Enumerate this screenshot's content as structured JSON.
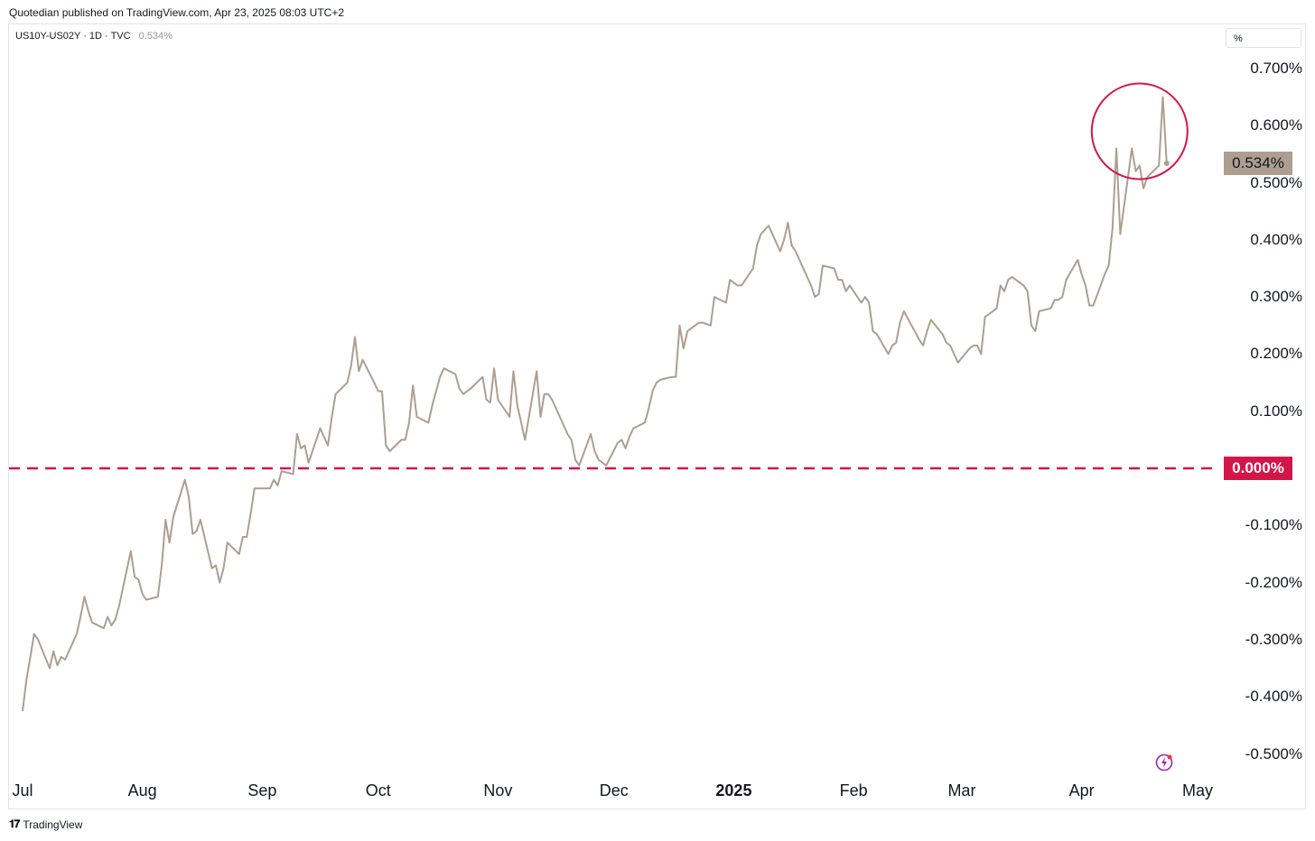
{
  "publisher_line": "Quotedian published on TradingView.com, Apr 23, 2025 08:03 UTC+2",
  "symbol": {
    "name": "US10Y-US02Y · 1D · TVC",
    "last": "0.534%"
  },
  "unit_button": "%",
  "price_badge": "0.534%",
  "zero_badge": "0.000%",
  "footer": {
    "logo": "𝟏𝟕",
    "brand": "TradingView"
  },
  "icons": {
    "flash": "lightning-icon",
    "logo": "tradingview-logo-icon"
  },
  "colors": {
    "line": "#ad9e8f",
    "zero_line": "#d2164a",
    "annotation_circle": "#d2164a",
    "price_badge": "#ad9e8f"
  },
  "chart_data": {
    "type": "line",
    "title": "",
    "ylabel": "%",
    "ylim": [
      -0.55,
      0.75
    ],
    "yticks": [
      "0.700%",
      "0.600%",
      "0.500%",
      "0.400%",
      "0.300%",
      "0.200%",
      "0.100%",
      "-0.100%",
      "-0.200%",
      "-0.300%",
      "-0.400%",
      "-0.500%"
    ],
    "ytick_values": [
      0.7,
      0.6,
      0.5,
      0.4,
      0.3,
      0.2,
      0.1,
      -0.1,
      -0.2,
      -0.3,
      -0.4,
      -0.5
    ],
    "xticks": [
      {
        "label": "Jul",
        "date": "2024-07-01"
      },
      {
        "label": "Aug",
        "date": "2024-08-01"
      },
      {
        "label": "Sep",
        "date": "2024-09-01"
      },
      {
        "label": "Oct",
        "date": "2024-10-01"
      },
      {
        "label": "Nov",
        "date": "2024-11-01"
      },
      {
        "label": "Dec",
        "date": "2024-12-01"
      },
      {
        "label": "2025",
        "date": "2025-01-01",
        "bold": true
      },
      {
        "label": "Feb",
        "date": "2025-02-01"
      },
      {
        "label": "Mar",
        "date": "2025-03-01"
      },
      {
        "label": "Apr",
        "date": "2025-04-01"
      },
      {
        "label": "May",
        "date": "2025-05-01"
      }
    ],
    "horizontal_line": {
      "value": 0.0,
      "style": "dashed"
    },
    "annotation": {
      "type": "circle",
      "center_date": "2025-04-16",
      "center_value": 0.59
    },
    "series": [
      {
        "points": [
          [
            "2024-07-01",
            -0.425
          ],
          [
            "2024-07-02",
            -0.37
          ],
          [
            "2024-07-03",
            -0.33
          ],
          [
            "2024-07-04",
            -0.29
          ],
          [
            "2024-07-05",
            -0.3
          ],
          [
            "2024-07-08",
            -0.35
          ],
          [
            "2024-07-09",
            -0.32
          ],
          [
            "2024-07-10",
            -0.345
          ],
          [
            "2024-07-11",
            -0.33
          ],
          [
            "2024-07-12",
            -0.335
          ],
          [
            "2024-07-15",
            -0.29
          ],
          [
            "2024-07-16",
            -0.26
          ],
          [
            "2024-07-17",
            -0.225
          ],
          [
            "2024-07-18",
            -0.25
          ],
          [
            "2024-07-19",
            -0.27
          ],
          [
            "2024-07-22",
            -0.28
          ],
          [
            "2024-07-23",
            -0.26
          ],
          [
            "2024-07-24",
            -0.275
          ],
          [
            "2024-07-25",
            -0.265
          ],
          [
            "2024-07-26",
            -0.24
          ],
          [
            "2024-07-29",
            -0.145
          ],
          [
            "2024-07-30",
            -0.19
          ],
          [
            "2024-07-31",
            -0.195
          ],
          [
            "2024-08-01",
            -0.22
          ],
          [
            "2024-08-02",
            -0.23
          ],
          [
            "2024-08-05",
            -0.225
          ],
          [
            "2024-08-06",
            -0.17
          ],
          [
            "2024-08-07",
            -0.09
          ],
          [
            "2024-08-08",
            -0.13
          ],
          [
            "2024-08-09",
            -0.085
          ],
          [
            "2024-08-12",
            -0.02
          ],
          [
            "2024-08-13",
            -0.05
          ],
          [
            "2024-08-14",
            -0.115
          ],
          [
            "2024-08-15",
            -0.11
          ],
          [
            "2024-08-16",
            -0.09
          ],
          [
            "2024-08-19",
            -0.175
          ],
          [
            "2024-08-20",
            -0.17
          ],
          [
            "2024-08-21",
            -0.2
          ],
          [
            "2024-08-22",
            -0.175
          ],
          [
            "2024-08-23",
            -0.13
          ],
          [
            "2024-08-26",
            -0.15
          ],
          [
            "2024-08-27",
            -0.12
          ],
          [
            "2024-08-28",
            -0.12
          ],
          [
            "2024-08-29",
            -0.08
          ],
          [
            "2024-08-30",
            -0.035
          ],
          [
            "2024-09-03",
            -0.035
          ],
          [
            "2024-09-04",
            -0.02
          ],
          [
            "2024-09-05",
            -0.03
          ],
          [
            "2024-09-06",
            -0.005
          ],
          [
            "2024-09-09",
            -0.01
          ],
          [
            "2024-09-10",
            0.06
          ],
          [
            "2024-09-11",
            0.035
          ],
          [
            "2024-09-12",
            0.04
          ],
          [
            "2024-09-13",
            0.01
          ],
          [
            "2024-09-16",
            0.07
          ],
          [
            "2024-09-17",
            0.055
          ],
          [
            "2024-09-18",
            0.04
          ],
          [
            "2024-09-19",
            0.09
          ],
          [
            "2024-09-20",
            0.13
          ],
          [
            "2024-09-23",
            0.15
          ],
          [
            "2024-09-24",
            0.18
          ],
          [
            "2024-09-25",
            0.23
          ],
          [
            "2024-09-26",
            0.17
          ],
          [
            "2024-09-27",
            0.19
          ],
          [
            "2024-09-30",
            0.15
          ],
          [
            "2024-10-01",
            0.135
          ],
          [
            "2024-10-02",
            0.135
          ],
          [
            "2024-10-03",
            0.04
          ],
          [
            "2024-10-04",
            0.03
          ],
          [
            "2024-10-07",
            0.05
          ],
          [
            "2024-10-08",
            0.05
          ],
          [
            "2024-10-09",
            0.08
          ],
          [
            "2024-10-10",
            0.145
          ],
          [
            "2024-10-11",
            0.09
          ],
          [
            "2024-10-14",
            0.08
          ],
          [
            "2024-10-15",
            0.11
          ],
          [
            "2024-10-16",
            0.135
          ],
          [
            "2024-10-17",
            0.16
          ],
          [
            "2024-10-18",
            0.175
          ],
          [
            "2024-10-21",
            0.165
          ],
          [
            "2024-10-22",
            0.14
          ],
          [
            "2024-10-23",
            0.13
          ],
          [
            "2024-10-24",
            0.135
          ],
          [
            "2024-10-25",
            0.14
          ],
          [
            "2024-10-28",
            0.16
          ],
          [
            "2024-10-29",
            0.12
          ],
          [
            "2024-10-30",
            0.115
          ],
          [
            "2024-10-31",
            0.175
          ],
          [
            "2024-11-01",
            0.12
          ],
          [
            "2024-11-04",
            0.09
          ],
          [
            "2024-11-05",
            0.17
          ],
          [
            "2024-11-06",
            0.11
          ],
          [
            "2024-11-07",
            0.08
          ],
          [
            "2024-11-08",
            0.05
          ],
          [
            "2024-11-11",
            0.17
          ],
          [
            "2024-11-12",
            0.09
          ],
          [
            "2024-11-13",
            0.13
          ],
          [
            "2024-11-14",
            0.13
          ],
          [
            "2024-11-15",
            0.12
          ],
          [
            "2024-11-18",
            0.075
          ],
          [
            "2024-11-19",
            0.06
          ],
          [
            "2024-11-20",
            0.05
          ],
          [
            "2024-11-21",
            0.015
          ],
          [
            "2024-11-22",
            0.005
          ],
          [
            "2024-11-25",
            0.06
          ],
          [
            "2024-11-26",
            0.03
          ],
          [
            "2024-11-27",
            0.015
          ],
          [
            "2024-11-29",
            0.005
          ],
          [
            "2024-12-02",
            0.045
          ],
          [
            "2024-12-03",
            0.05
          ],
          [
            "2024-12-04",
            0.035
          ],
          [
            "2024-12-05",
            0.055
          ],
          [
            "2024-12-06",
            0.07
          ],
          [
            "2024-12-09",
            0.08
          ],
          [
            "2024-12-10",
            0.105
          ],
          [
            "2024-12-11",
            0.135
          ],
          [
            "2024-12-12",
            0.15
          ],
          [
            "2024-12-13",
            0.155
          ],
          [
            "2024-12-16",
            0.16
          ],
          [
            "2024-12-17",
            0.16
          ],
          [
            "2024-12-18",
            0.25
          ],
          [
            "2024-12-19",
            0.21
          ],
          [
            "2024-12-20",
            0.24
          ],
          [
            "2024-12-23",
            0.255
          ],
          [
            "2024-12-24",
            0.255
          ],
          [
            "2024-12-26",
            0.25
          ],
          [
            "2024-12-27",
            0.3
          ],
          [
            "2024-12-30",
            0.29
          ],
          [
            "2024-12-31",
            0.33
          ],
          [
            "2025-01-02",
            0.32
          ],
          [
            "2025-01-03",
            0.32
          ],
          [
            "2025-01-06",
            0.35
          ],
          [
            "2025-01-07",
            0.39
          ],
          [
            "2025-01-08",
            0.41
          ],
          [
            "2025-01-10",
            0.425
          ],
          [
            "2025-01-13",
            0.38
          ],
          [
            "2025-01-14",
            0.4
          ],
          [
            "2025-01-15",
            0.43
          ],
          [
            "2025-01-16",
            0.39
          ],
          [
            "2025-01-17",
            0.38
          ],
          [
            "2025-01-21",
            0.32
          ],
          [
            "2025-01-22",
            0.3
          ],
          [
            "2025-01-23",
            0.305
          ],
          [
            "2025-01-24",
            0.355
          ],
          [
            "2025-01-27",
            0.35
          ],
          [
            "2025-01-28",
            0.33
          ],
          [
            "2025-01-29",
            0.33
          ],
          [
            "2025-01-30",
            0.31
          ],
          [
            "2025-01-31",
            0.32
          ],
          [
            "2025-02-03",
            0.29
          ],
          [
            "2025-02-04",
            0.3
          ],
          [
            "2025-02-05",
            0.29
          ],
          [
            "2025-02-06",
            0.24
          ],
          [
            "2025-02-07",
            0.235
          ],
          [
            "2025-02-10",
            0.2
          ],
          [
            "2025-02-11",
            0.215
          ],
          [
            "2025-02-12",
            0.22
          ],
          [
            "2025-02-13",
            0.255
          ],
          [
            "2025-02-14",
            0.275
          ],
          [
            "2025-02-18",
            0.225
          ],
          [
            "2025-02-19",
            0.215
          ],
          [
            "2025-02-20",
            0.24
          ],
          [
            "2025-02-21",
            0.26
          ],
          [
            "2025-02-24",
            0.235
          ],
          [
            "2025-02-25",
            0.22
          ],
          [
            "2025-02-26",
            0.215
          ],
          [
            "2025-02-27",
            0.2
          ],
          [
            "2025-02-28",
            0.185
          ],
          [
            "2025-03-03",
            0.21
          ],
          [
            "2025-03-04",
            0.215
          ],
          [
            "2025-03-05",
            0.215
          ],
          [
            "2025-03-06",
            0.2
          ],
          [
            "2025-03-07",
            0.265
          ],
          [
            "2025-03-10",
            0.28
          ],
          [
            "2025-03-11",
            0.32
          ],
          [
            "2025-03-12",
            0.31
          ],
          [
            "2025-03-13",
            0.33
          ],
          [
            "2025-03-14",
            0.335
          ],
          [
            "2025-03-17",
            0.32
          ],
          [
            "2025-03-18",
            0.31
          ],
          [
            "2025-03-19",
            0.25
          ],
          [
            "2025-03-20",
            0.24
          ],
          [
            "2025-03-21",
            0.275
          ],
          [
            "2025-03-24",
            0.28
          ],
          [
            "2025-03-25",
            0.295
          ],
          [
            "2025-03-26",
            0.295
          ],
          [
            "2025-03-27",
            0.3
          ],
          [
            "2025-03-28",
            0.33
          ],
          [
            "2025-03-31",
            0.365
          ],
          [
            "2025-04-01",
            0.34
          ],
          [
            "2025-04-02",
            0.32
          ],
          [
            "2025-04-03",
            0.285
          ],
          [
            "2025-04-04",
            0.285
          ],
          [
            "2025-04-07",
            0.34
          ],
          [
            "2025-04-08",
            0.355
          ],
          [
            "2025-04-09",
            0.42
          ],
          [
            "2025-04-10",
            0.56
          ],
          [
            "2025-04-11",
            0.41
          ],
          [
            "2025-04-14",
            0.56
          ],
          [
            "2025-04-15",
            0.52
          ],
          [
            "2025-04-16",
            0.53
          ],
          [
            "2025-04-17",
            0.49
          ],
          [
            "2025-04-18",
            0.51
          ],
          [
            "2025-04-21",
            0.53
          ],
          [
            "2025-04-22",
            0.65
          ],
          [
            "2025-04-23",
            0.534
          ]
        ]
      }
    ]
  }
}
